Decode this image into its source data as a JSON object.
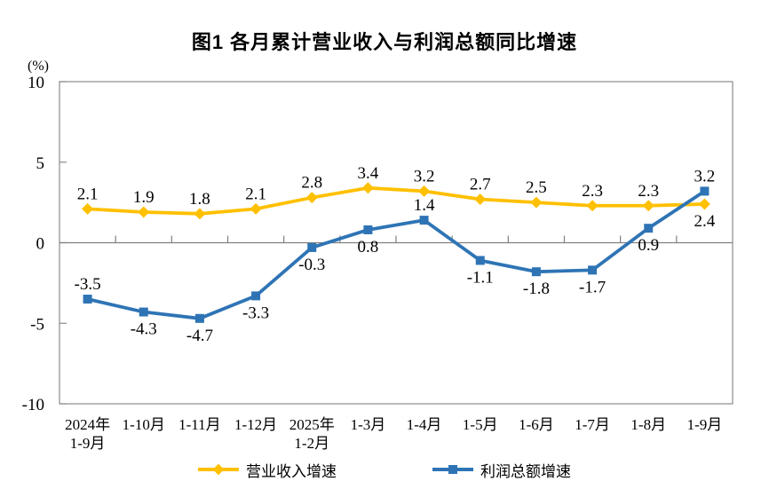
{
  "chart_data": {
    "type": "line",
    "title": "图1 各月累计营业收入与利润总额同比增速",
    "unit_label": "(%)",
    "categories": [
      "2024年\n1-9月",
      "1-10月",
      "1-11月",
      "1-12月",
      "2025年\n1-2月",
      "1-3月",
      "1-4月",
      "1-5月",
      "1-6月",
      "1-7月",
      "1-8月",
      "1-9月"
    ],
    "series": [
      {
        "name": "营业收入增速",
        "color": "#FFC000",
        "marker": "diamond",
        "values": [
          2.1,
          1.9,
          1.8,
          2.1,
          2.8,
          3.4,
          3.2,
          2.7,
          2.5,
          2.3,
          2.3,
          2.4
        ],
        "label_side": [
          "above",
          "above",
          "above",
          "above",
          "above",
          "above",
          "above",
          "above",
          "above",
          "above",
          "above",
          "below"
        ]
      },
      {
        "name": "利润总额增速",
        "color": "#2E74B5",
        "marker": "square",
        "values": [
          -3.5,
          -4.3,
          -4.7,
          -3.3,
          -0.3,
          0.8,
          1.4,
          -1.1,
          -1.8,
          -1.7,
          0.9,
          3.2
        ],
        "label_side": [
          "above",
          "below",
          "below",
          "below",
          "below",
          "below",
          "above",
          "below",
          "below",
          "below",
          "below",
          "above"
        ]
      }
    ],
    "ylim": [
      -10,
      10
    ],
    "yticks": [
      10,
      5,
      0,
      -5,
      -10
    ],
    "grid": false,
    "legend_position": "bottom",
    "axis_color": "#8C8C8C",
    "zero_line_color": "#808080",
    "text_color": "#000000"
  }
}
